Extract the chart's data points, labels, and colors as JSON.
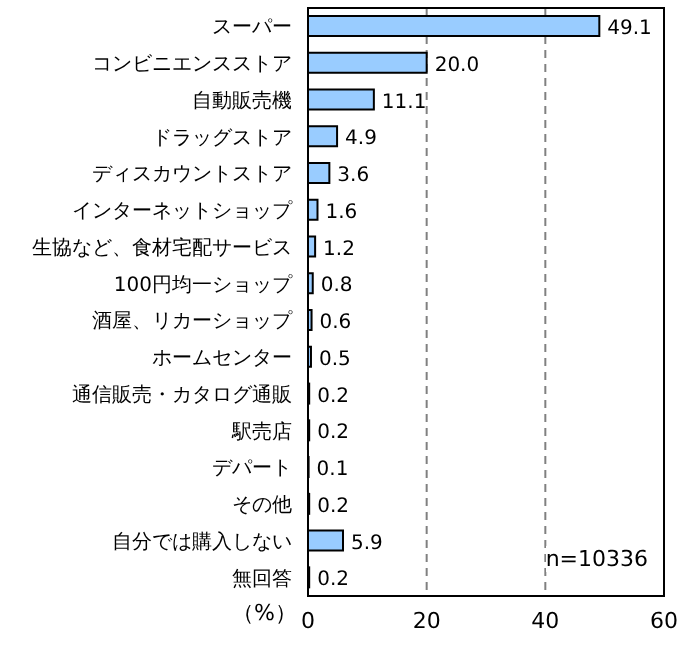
{
  "chart_data": {
    "type": "bar",
    "orientation": "horizontal",
    "categories": [
      "スーパー",
      "コンビニエンスストア",
      "自動販売機",
      "ドラッグストア",
      "ディスカウントストア",
      "インターネットショップ",
      "生協など、食材宅配サービス",
      "100円均一ショップ",
      "酒屋、リカーショップ",
      "ホームセンター",
      "通信販売・カタログ通販",
      "駅売店",
      "デパート",
      "その他",
      "自分では購入しない",
      "無回答"
    ],
    "values": [
      49.1,
      20.0,
      11.1,
      4.9,
      3.6,
      1.6,
      1.2,
      0.8,
      0.6,
      0.5,
      0.2,
      0.2,
      0.1,
      0.2,
      5.9,
      0.2
    ],
    "value_labels": [
      "49.1",
      "20.0",
      "11.1",
      "4.9",
      "3.6",
      "1.6",
      "1.2",
      "0.8",
      "0.6",
      "0.5",
      "0.2",
      "0.2",
      "0.1",
      "0.2",
      "5.9",
      "0.2"
    ],
    "color": "#99ccff",
    "xlabel": "（%）",
    "xlim": [
      0,
      60
    ],
    "xticks": [
      0,
      20,
      40,
      60
    ],
    "grid": "x",
    "legend": false,
    "annotations": [
      "n=10336"
    ]
  }
}
